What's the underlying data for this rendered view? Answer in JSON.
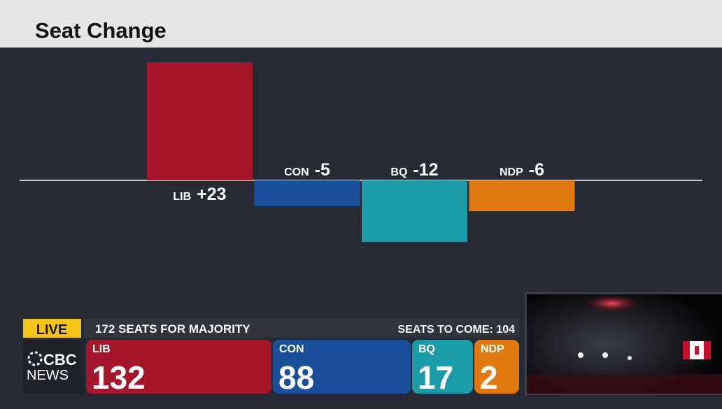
{
  "chart_data": {
    "type": "bar",
    "title": "Seat Change",
    "categories": [
      "LIB",
      "CON",
      "BQ",
      "NDP"
    ],
    "values": [
      23,
      -5,
      -12,
      -6
    ],
    "value_labels": [
      "+23",
      "-5",
      "-12",
      "-6"
    ],
    "colors": [
      "#a6162a",
      "#1a4f9c",
      "#1b9aa8",
      "#e07a10"
    ]
  },
  "ticker": {
    "live": "LIVE",
    "majority": "172 SEATS FOR MAJORITY",
    "to_come": "SEATS TO COME: 104",
    "logo": [
      "CBC",
      "NEWS"
    ],
    "parties": [
      {
        "name": "LIB",
        "seats": "132"
      },
      {
        "name": "CON",
        "seats": "88"
      },
      {
        "name": "BQ",
        "seats": "17"
      },
      {
        "name": "NDP",
        "seats": "2"
      }
    ]
  }
}
